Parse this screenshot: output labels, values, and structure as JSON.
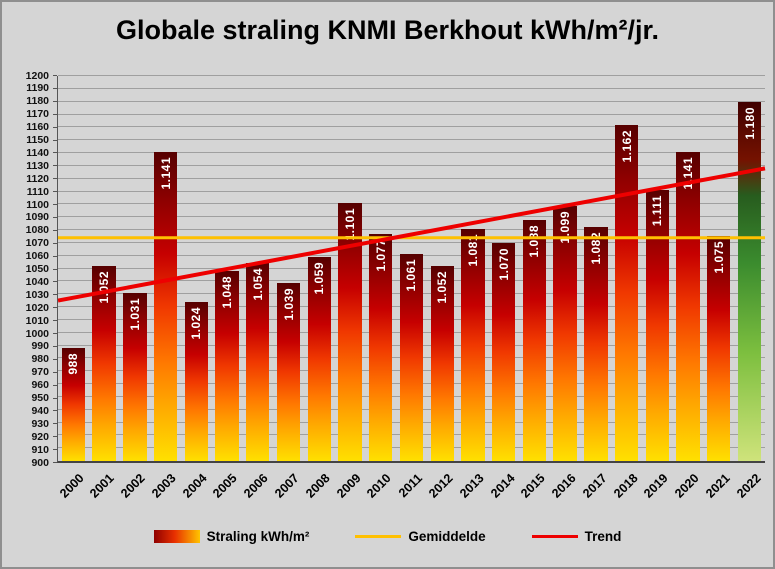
{
  "title": "Globale straling KNMI Berkhout kWh/m²/jr.",
  "chart_data": {
    "type": "bar",
    "title": "Globale straling KNMI Berkhout kWh/m²/jr.",
    "xlabel": "",
    "ylabel": "",
    "categories": [
      "2000",
      "2001",
      "2002",
      "2003",
      "2004",
      "2005",
      "2006",
      "2007",
      "2008",
      "2009",
      "2010",
      "2011",
      "2012",
      "2013",
      "2014",
      "2015",
      "2016",
      "2017",
      "2018",
      "2019",
      "2020",
      "2021",
      "2022"
    ],
    "values": [
      988,
      1052,
      1031,
      1141,
      1024,
      1048,
      1054,
      1039,
      1059,
      1101,
      1077,
      1061,
      1052,
      1081,
      1070,
      1088,
      1099,
      1082,
      1162,
      1111,
      1141,
      1075,
      1180
    ],
    "bar_labels": [
      "988",
      "1.052",
      "1.031",
      "1.141",
      "1.024",
      "1.048",
      "1.054",
      "1.039",
      "1.059",
      "1.101",
      "1.077",
      "1.061",
      "1.052",
      "1.081",
      "1.070",
      "1.088",
      "1.099",
      "1.082",
      "1.162",
      "1.111",
      "1.141",
      "1.075",
      "1.180"
    ],
    "ylim": [
      900,
      1200
    ],
    "ytick_step": 10,
    "grid": true,
    "average_line": 1074,
    "trend_line": {
      "start": 1025,
      "end": 1128
    },
    "legend_position": "bottom",
    "legend": [
      {
        "id": "straling",
        "label": "Straling kWh/m²",
        "swatch": "gradient"
      },
      {
        "id": "gemiddelde",
        "label": "Gemiddelde",
        "swatch": "line",
        "color": "#ffc000"
      },
      {
        "id": "trend",
        "label": "Trend",
        "swatch": "line",
        "color": "#ee0000"
      }
    ],
    "colors": {
      "background": "#d5d5d5",
      "gridline": "#9f9f9f",
      "axis": "#444444",
      "bar_gradient": [
        "#560000 0%",
        "#8f0000 16%",
        "#c60000 33%",
        "#f03800 50%",
        "#ff7800 68%",
        "#ffa800 82%",
        "#ffe000 100%"
      ],
      "bar_gradient_last": [
        "#400000 0%",
        "#751200 16%",
        "#275c1e 26%",
        "#3b8c2e 45%",
        "#7dbf3f 70%",
        "#cfe37b 100%"
      ],
      "legend_gradient": [
        "#8f0000 0%",
        "#e83000 45%",
        "#ffc400 100%"
      ],
      "average_line": "#ffc000",
      "trend_line": "#ee0000",
      "bar_label_text": "#ffffff"
    }
  }
}
